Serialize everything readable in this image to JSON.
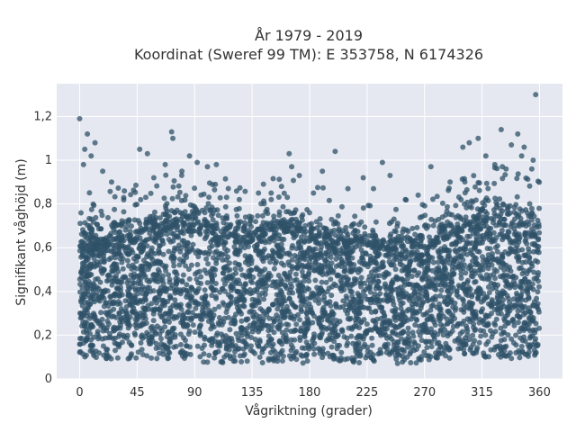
{
  "chart_data": {
    "type": "scatter",
    "title_line1": "År 1979 - 2019",
    "title_line2": "Koordinat (Sweref 99 TM): E 353758, N 6174326",
    "xlabel": "Vågriktning (grader)",
    "ylabel": "Signifikant våghöjd (m)",
    "xlim": [
      -18,
      378
    ],
    "ylim": [
      0,
      1.35
    ],
    "xticks": [
      0,
      45,
      90,
      135,
      180,
      225,
      270,
      315,
      360
    ],
    "xtick_labels": [
      "0",
      "45",
      "90",
      "135",
      "180",
      "225",
      "270",
      "315",
      "360"
    ],
    "yticks": [
      0,
      0.2,
      0.4,
      0.6,
      0.8,
      1.0,
      1.2
    ],
    "ytick_labels": [
      "0",
      "0,2",
      "0,4",
      "0,6",
      "0,8",
      "1",
      "1,2"
    ],
    "grid": true,
    "background": "#e5e8f0",
    "marker_color": "#2f5168",
    "dense_band": [
      {
        "x": 0,
        "y_low": 0.1,
        "y_high": 0.64
      },
      {
        "x": 20,
        "y_low": 0.09,
        "y_high": 0.64
      },
      {
        "x": 45,
        "y_low": 0.09,
        "y_high": 0.68
      },
      {
        "x": 70,
        "y_low": 0.08,
        "y_high": 0.72
      },
      {
        "x": 90,
        "y_low": 0.07,
        "y_high": 0.74
      },
      {
        "x": 110,
        "y_low": 0.07,
        "y_high": 0.7
      },
      {
        "x": 135,
        "y_low": 0.07,
        "y_high": 0.67
      },
      {
        "x": 160,
        "y_low": 0.07,
        "y_high": 0.72
      },
      {
        "x": 180,
        "y_low": 0.07,
        "y_high": 0.68
      },
      {
        "x": 200,
        "y_low": 0.07,
        "y_high": 0.64
      },
      {
        "x": 225,
        "y_low": 0.07,
        "y_high": 0.63
      },
      {
        "x": 250,
        "y_low": 0.07,
        "y_high": 0.64
      },
      {
        "x": 270,
        "y_low": 0.07,
        "y_high": 0.62
      },
      {
        "x": 290,
        "y_low": 0.08,
        "y_high": 0.68
      },
      {
        "x": 315,
        "y_low": 0.09,
        "y_high": 0.74
      },
      {
        "x": 340,
        "y_low": 0.09,
        "y_high": 0.76
      },
      {
        "x": 360,
        "y_low": 0.1,
        "y_high": 0.7
      }
    ],
    "points": [
      {
        "x": 0,
        "y": 1.19
      },
      {
        "x": 6,
        "y": 1.12
      },
      {
        "x": 4,
        "y": 1.05
      },
      {
        "x": 12,
        "y": 1.08
      },
      {
        "x": 3,
        "y": 0.98
      },
      {
        "x": 9,
        "y": 1.02
      },
      {
        "x": 18,
        "y": 0.95
      },
      {
        "x": 25,
        "y": 0.9
      },
      {
        "x": 35,
        "y": 0.86
      },
      {
        "x": 47,
        "y": 1.05
      },
      {
        "x": 53,
        "y": 1.03
      },
      {
        "x": 58,
        "y": 0.92
      },
      {
        "x": 67,
        "y": 0.98
      },
      {
        "x": 72,
        "y": 1.13
      },
      {
        "x": 73,
        "y": 1.1
      },
      {
        "x": 80,
        "y": 0.95
      },
      {
        "x": 86,
        "y": 1.02
      },
      {
        "x": 92,
        "y": 0.99
      },
      {
        "x": 100,
        "y": 0.97
      },
      {
        "x": 107,
        "y": 0.98
      },
      {
        "x": 115,
        "y": 0.83
      },
      {
        "x": 125,
        "y": 0.82
      },
      {
        "x": 140,
        "y": 0.85
      },
      {
        "x": 150,
        "y": 0.82
      },
      {
        "x": 164,
        "y": 1.03
      },
      {
        "x": 166,
        "y": 0.97
      },
      {
        "x": 172,
        "y": 0.93
      },
      {
        "x": 183,
        "y": 0.85
      },
      {
        "x": 190,
        "y": 0.95
      },
      {
        "x": 200,
        "y": 1.04
      },
      {
        "x": 210,
        "y": 0.87
      },
      {
        "x": 222,
        "y": 0.92
      },
      {
        "x": 230,
        "y": 0.87
      },
      {
        "x": 237,
        "y": 0.99
      },
      {
        "x": 243,
        "y": 0.93
      },
      {
        "x": 255,
        "y": 0.82
      },
      {
        "x": 265,
        "y": 0.84
      },
      {
        "x": 275,
        "y": 0.97
      },
      {
        "x": 290,
        "y": 0.9
      },
      {
        "x": 300,
        "y": 1.06
      },
      {
        "x": 305,
        "y": 1.08
      },
      {
        "x": 312,
        "y": 1.1
      },
      {
        "x": 318,
        "y": 1.02
      },
      {
        "x": 325,
        "y": 0.98
      },
      {
        "x": 330,
        "y": 1.14
      },
      {
        "x": 338,
        "y": 1.07
      },
      {
        "x": 343,
        "y": 1.12
      },
      {
        "x": 348,
        "y": 1.06
      },
      {
        "x": 355,
        "y": 1.0
      },
      {
        "x": 357,
        "y": 1.3
      },
      {
        "x": 354,
        "y": 0.96
      },
      {
        "x": 346,
        "y": 1.02
      }
    ]
  }
}
